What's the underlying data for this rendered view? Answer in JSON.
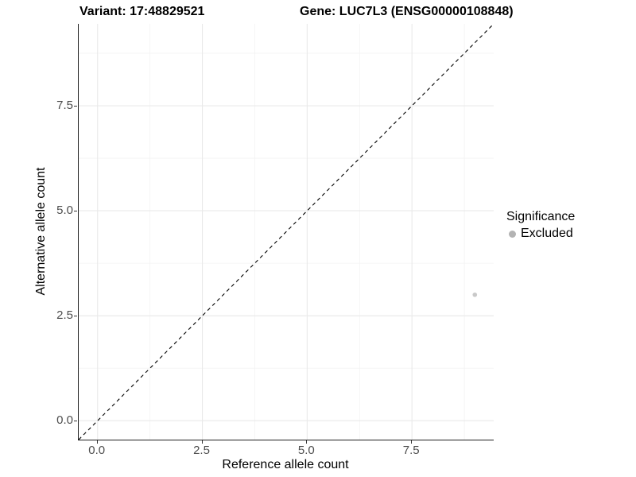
{
  "chart_data": {
    "type": "scatter",
    "titles": {
      "left": "Variant: 17:48829521",
      "right": "Gene: LUC7L3 (ENSG00000108848)"
    },
    "xlabel": "Reference allele count",
    "ylabel": "Alternative allele count",
    "xlim": [
      -0.45,
      9.45
    ],
    "ylim": [
      -0.45,
      9.45
    ],
    "x_ticks": {
      "values": [
        0,
        2.5,
        5,
        7.5
      ],
      "labels": [
        "0.0",
        "2.5",
        "5.0",
        "7.5"
      ]
    },
    "y_ticks": {
      "values": [
        0,
        2.5,
        5,
        7.5
      ],
      "labels": [
        "0.0",
        "2.5",
        "5.0",
        "7.5"
      ]
    },
    "x_minor_ticks": [
      1.25,
      3.75,
      6.25,
      8.75
    ],
    "y_minor_ticks": [
      1.25,
      3.75,
      6.25,
      8.75
    ],
    "grid": true,
    "identity_line": {
      "style": "dashed",
      "slope": 1,
      "intercept": 0,
      "color": "#000000"
    },
    "series": [
      {
        "name": "Excluded",
        "color": "#c9c9c9",
        "point_radius": 2.8,
        "points": [
          {
            "x": 9,
            "y": 3
          }
        ]
      }
    ],
    "legend": {
      "title": "Significance",
      "position": "right",
      "entries": [
        {
          "label": "Excluded",
          "color": "#b3b3b3"
        }
      ]
    },
    "style": {
      "grid_major_color": "#e9e9e9",
      "grid_minor_color": "#f3f3f3",
      "axis_line_color": "#1f1f1f",
      "tick_mark_color": "#333333",
      "tick_label_color": "#4d4d4d"
    }
  }
}
